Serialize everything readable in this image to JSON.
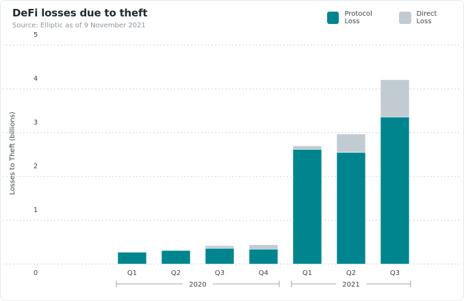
{
  "header": {
    "title": "DeFi losses due to theft",
    "subtitle": "Source: Elliptic as of 9 November 2021"
  },
  "legend": [
    {
      "label": "Protocol Loss",
      "color": "#00858f"
    },
    {
      "label": "Direct Loss",
      "color": "#c2cbd2"
    }
  ],
  "chart_data": {
    "type": "bar",
    "stacked": true,
    "title": "DeFi losses due to theft",
    "subtitle": "Source: Elliptic as of 9 November 2021",
    "ylabel": "Losses to Theft (billions)",
    "xlabel": "",
    "ylim": [
      0,
      5
    ],
    "yticks": [
      0,
      1,
      2,
      3,
      4,
      5
    ],
    "grid": true,
    "legend_position": "top-right",
    "categories": [
      "Q1",
      "Q2",
      "Q3",
      "Q4",
      "Q1",
      "Q2",
      "Q3"
    ],
    "groups": [
      {
        "label": "2020",
        "from": 0,
        "to": 3
      },
      {
        "label": "2021",
        "from": 4,
        "to": 6
      }
    ],
    "series": [
      {
        "name": "Protocol Loss",
        "color": "#00858f",
        "values": [
          0.27,
          0.31,
          0.36,
          0.34,
          2.62,
          2.55,
          3.36
        ]
      },
      {
        "name": "Direct Loss",
        "color": "#c2cbd2",
        "values": [
          0.01,
          0.01,
          0.06,
          0.1,
          0.08,
          0.42,
          0.85
        ]
      }
    ]
  }
}
